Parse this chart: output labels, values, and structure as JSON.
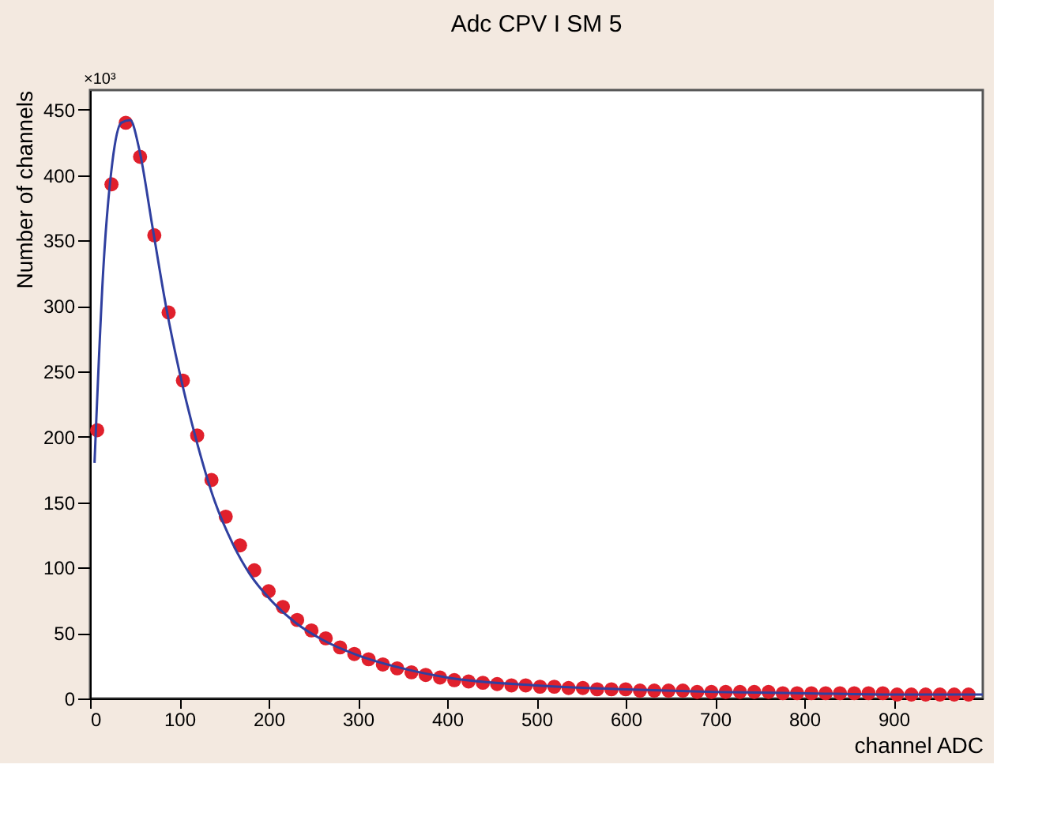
{
  "chart_data": {
    "type": "scatter",
    "title": "Adc CPV I SM 5",
    "xlabel": "channel ADC",
    "ylabel": "Number of channels",
    "annotations": [
      "×10³"
    ],
    "xlim": [
      0,
      1000
    ],
    "xticks": [
      0,
      100,
      200,
      300,
      400,
      500,
      600,
      700,
      800,
      900
    ],
    "ylim": [
      0,
      465
    ],
    "yticks": [
      0,
      50,
      100,
      150,
      200,
      250,
      300,
      350,
      400,
      450
    ],
    "grid": false,
    "series": [
      {
        "color": "#e0202c",
        "marker": "circle",
        "x": [
          8,
          24,
          40,
          56,
          72,
          88,
          104,
          120,
          136,
          152,
          168,
          184,
          200,
          216,
          232,
          248,
          264,
          280,
          296,
          312,
          328,
          344,
          360,
          376,
          392,
          408,
          424,
          440,
          456,
          472,
          488,
          504,
          520,
          536,
          552,
          568,
          584,
          600,
          616,
          632,
          648,
          664,
          680,
          696,
          712,
          728,
          744,
          760,
          776,
          792,
          808,
          824,
          840,
          856,
          872,
          888,
          904,
          920,
          936,
          952,
          968,
          984
        ],
        "values": [
          205,
          393,
          440,
          414,
          354,
          295,
          243,
          201,
          167,
          139,
          117,
          98,
          82,
          70,
          60,
          52,
          46,
          39,
          34,
          30,
          26,
          23,
          20,
          18,
          16,
          14,
          13,
          12,
          11,
          10,
          10,
          9,
          9,
          8,
          8,
          7,
          7,
          7,
          6,
          6,
          6,
          6,
          5,
          5,
          5,
          5,
          5,
          5,
          4,
          4,
          4,
          4,
          4,
          4,
          4,
          4,
          3,
          3,
          3,
          3,
          3,
          3
        ]
      },
      {
        "type": "line",
        "color": "#3040a0",
        "x": [
          5,
          15,
          25,
          35,
          45,
          55,
          70,
          85,
          100,
          120,
          140,
          160,
          180,
          200,
          230,
          260,
          300,
          350,
          400,
          500,
          600,
          700,
          800,
          900,
          1000
        ],
        "values": [
          180,
          330,
          410,
          440,
          442,
          420,
          360,
          300,
          250,
          195,
          150,
          118,
          94,
          77,
          58,
          45,
          33,
          23,
          16,
          10,
          7,
          5,
          4,
          3,
          3
        ]
      }
    ]
  }
}
